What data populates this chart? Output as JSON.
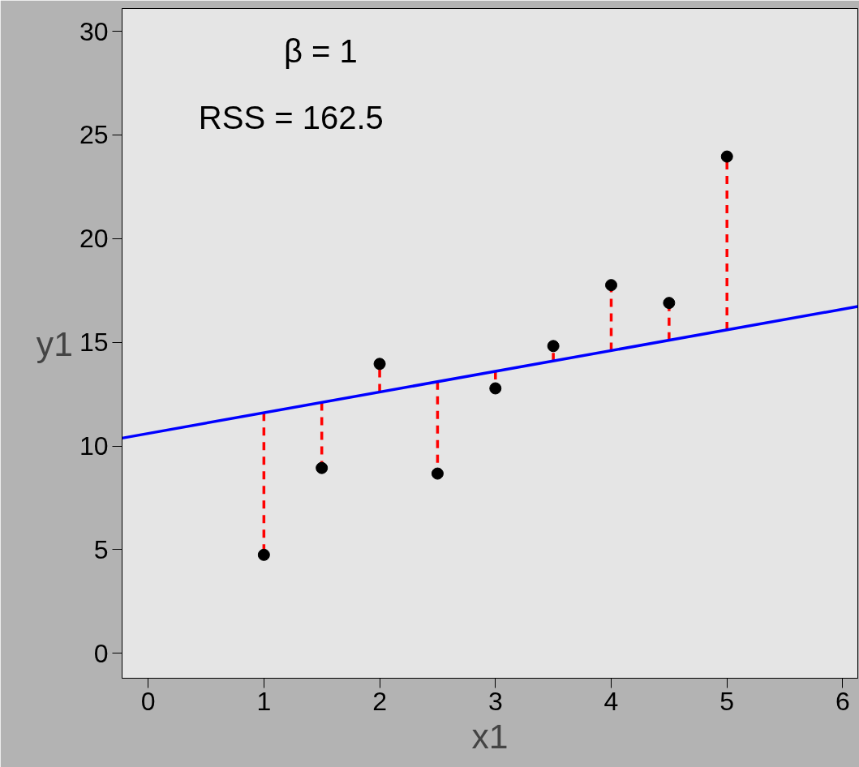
{
  "chart_data": {
    "type": "scatter",
    "xlabel": "x1",
    "ylabel": "y1",
    "annotations": [
      "β = 1",
      "RSS = 162.5"
    ],
    "xlim": [
      -0.225,
      6.13
    ],
    "ylim": [
      -1.2,
      31.1
    ],
    "xticks": [
      0,
      1,
      2,
      3,
      4,
      5,
      6
    ],
    "yticks": [
      0,
      5,
      10,
      15,
      20,
      25,
      30
    ],
    "grid": false,
    "marker": "circle",
    "series": [
      {
        "type": "line",
        "marker": "none",
        "color": "#ff0000",
        "line_style": "dashed",
        "x": [
          1,
          1
        ],
        "values": [
          11.6,
          4.75
        ]
      },
      {
        "type": "line",
        "marker": "none",
        "color": "#ff0000",
        "line_style": "dashed",
        "x": [
          1.5,
          1.5
        ],
        "values": [
          12.1,
          8.94
        ]
      },
      {
        "type": "line",
        "marker": "none",
        "color": "#ff0000",
        "line_style": "dashed",
        "x": [
          2,
          2
        ],
        "values": [
          12.6,
          13.96
        ]
      },
      {
        "type": "line",
        "marker": "none",
        "color": "#ff0000",
        "line_style": "dashed",
        "x": [
          2.5,
          2.5
        ],
        "values": [
          13.1,
          8.67
        ]
      },
      {
        "type": "line",
        "marker": "none",
        "color": "#ff0000",
        "line_style": "dashed",
        "x": [
          3,
          3
        ],
        "values": [
          13.6,
          12.78
        ]
      },
      {
        "type": "line",
        "marker": "none",
        "color": "#ff0000",
        "line_style": "dashed",
        "x": [
          3.5,
          3.5
        ],
        "values": [
          14.1,
          14.82
        ]
      },
      {
        "type": "line",
        "marker": "none",
        "color": "#ff0000",
        "line_style": "dashed",
        "x": [
          4,
          4
        ],
        "values": [
          14.6,
          17.76
        ]
      },
      {
        "type": "line",
        "marker": "none",
        "color": "#ff0000",
        "line_style": "dashed",
        "x": [
          4.5,
          4.5
        ],
        "values": [
          15.1,
          16.9
        ]
      },
      {
        "type": "line",
        "marker": "none",
        "color": "#ff0000",
        "line_style": "dashed",
        "x": [
          5,
          5
        ],
        "values": [
          15.6,
          23.96
        ]
      },
      {
        "type": "line",
        "marker": "none",
        "color": "#0000ff",
        "line_style": "solid",
        "x": [
          -0.225,
          6.13
        ],
        "values": [
          10.38,
          16.73
        ]
      },
      {
        "color": "#000000",
        "x": [
          1,
          1.5,
          2,
          2.5,
          3,
          3.5,
          4,
          4.5,
          5
        ],
        "values": [
          4.75,
          8.94,
          13.96,
          8.67,
          12.78,
          14.82,
          17.76,
          16.9,
          23.96
        ]
      }
    ]
  }
}
